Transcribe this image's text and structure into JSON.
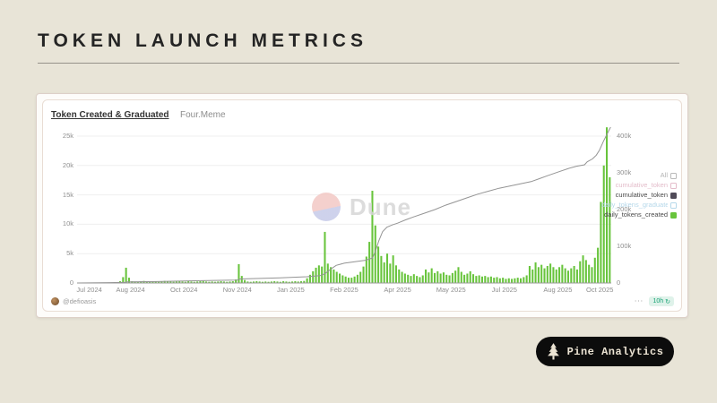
{
  "slide": {
    "title": "TOKEN LAUNCH METRICS"
  },
  "brand": {
    "label": "Pine Analytics",
    "icon": "pine-tree-icon"
  },
  "watermark": {
    "label": "Dune"
  },
  "card": {
    "title": "Token Created & Graduated",
    "subtitle": "Four.Meme",
    "attribution": "@defioasis",
    "menu_ellipsis": "⋯",
    "refresh_badge": {
      "label": "10h",
      "icon_glyph": "↻"
    }
  },
  "legend": [
    {
      "label": "All",
      "text_color": "#b3b3b3",
      "box_color": "#b9b9b9",
      "filled": false
    },
    {
      "label": "cumulative_token",
      "text_color": "#e3bcca",
      "box_color": "#e3bcca",
      "filled": false
    },
    {
      "label": "cumulative_token",
      "text_color": "#4a4a4a",
      "box_color": "#504b58",
      "filled": true
    },
    {
      "label": "daily_tokens_graduated",
      "text_color": "#b5d8ea",
      "box_color": "#b5d8ea",
      "filled": false
    },
    {
      "label": "daily_tokens_created",
      "text_color": "#4a4a4a",
      "box_color": "#68c43c",
      "filled": true
    }
  ],
  "chart_data": {
    "type": "bar+line",
    "title": "Token Created & Graduated",
    "subtitle": "Four.Meme",
    "x_ticks": [
      "Jul 2024",
      "Aug 2024",
      "Oct 2024",
      "Nov 2024",
      "Jan 2025",
      "Feb 2025",
      "Apr 2025",
      "May 2025",
      "Jul 2025",
      "Aug 2025",
      "Oct 2025"
    ],
    "left_axis": {
      "tick_labels": [
        "25k",
        "20k",
        "15k",
        "10k",
        "5k",
        "0"
      ],
      "tick_values": [
        25,
        20,
        15,
        10,
        5,
        0
      ],
      "unit": "thousand tokens / day",
      "max": 26.5
    },
    "right_axis": {
      "tick_labels": [
        "400k",
        "300k",
        "200k",
        "100k",
        "0"
      ],
      "tick_values": [
        400,
        300,
        200,
        100,
        0
      ],
      "unit": "thousand tokens cumulative",
      "max": 430
    },
    "grid": true,
    "legend_position": "right",
    "series": [
      {
        "name": "daily_tokens_created",
        "type": "bar",
        "axis": "left",
        "color": "#68c43c",
        "values_k": [
          0.05,
          0.03,
          0.04,
          0.03,
          0.05,
          0.04,
          0.03,
          0.05,
          0.04,
          0.06,
          0.05,
          0.04,
          0.06,
          0.08,
          0.3,
          1.0,
          2.6,
          0.9,
          0.3,
          0.25,
          0.2,
          0.3,
          0.35,
          0.25,
          0.2,
          0.25,
          0.3,
          0.2,
          0.25,
          0.35,
          0.3,
          0.25,
          0.2,
          0.25,
          0.3,
          0.25,
          0.2,
          0.3,
          0.25,
          0.2,
          0.25,
          0.3,
          0.35,
          0.25,
          0.2,
          0.25,
          0.2,
          0.25,
          0.3,
          0.25,
          0.2,
          0.25,
          0.3,
          0.6,
          3.2,
          1.2,
          0.5,
          0.25,
          0.2,
          0.25,
          0.3,
          0.25,
          0.2,
          0.25,
          0.2,
          0.25,
          0.3,
          0.25,
          0.2,
          0.3,
          0.25,
          0.2,
          0.25,
          0.3,
          0.25,
          0.3,
          0.35,
          0.8,
          1.4,
          2.0,
          2.6,
          3.0,
          2.8,
          8.7,
          3.3,
          2.7,
          2.3,
          1.9,
          1.6,
          1.3,
          1.1,
          0.9,
          0.9,
          1.1,
          1.4,
          1.9,
          2.8,
          4.5,
          7.0,
          15.7,
          9.8,
          6.2,
          4.6,
          3.5,
          5.0,
          3.3,
          4.7,
          3.0,
          2.3,
          1.9,
          1.6,
          1.4,
          1.2,
          1.5,
          1.2,
          1.0,
          1.3,
          2.3,
          1.8,
          2.5,
          1.7,
          2.0,
          1.6,
          1.8,
          1.4,
          1.3,
          1.7,
          2.1,
          2.7,
          1.9,
          1.4,
          1.6,
          2.0,
          1.5,
          1.2,
          1.3,
          1.1,
          1.2,
          1.0,
          1.1,
          0.9,
          1.0,
          0.8,
          0.9,
          0.7,
          0.8,
          0.7,
          0.8,
          0.9,
          0.8,
          1.0,
          1.3,
          2.9,
          2.3,
          3.5,
          2.7,
          3.1,
          2.5,
          2.9,
          3.3,
          2.7,
          2.3,
          2.7,
          3.1,
          2.5,
          2.1,
          2.5,
          2.9,
          2.3,
          3.7,
          4.7,
          3.9,
          3.1,
          2.7,
          4.3,
          6.0,
          13.8,
          20.0,
          26.5,
          18.0
        ]
      },
      {
        "name": "cumulative_token",
        "type": "line",
        "axis": "right",
        "color": "#949494",
        "points_fk": [
          [
            0,
            0
          ],
          [
            0.06,
            1
          ],
          [
            0.09,
            2
          ],
          [
            0.095,
            3
          ],
          [
            0.15,
            4
          ],
          [
            0.22,
            6
          ],
          [
            0.3,
            8
          ],
          [
            0.305,
            11
          ],
          [
            0.38,
            14
          ],
          [
            0.43,
            17
          ],
          [
            0.455,
            20
          ],
          [
            0.465,
            26
          ],
          [
            0.475,
            38
          ],
          [
            0.485,
            48
          ],
          [
            0.5,
            54
          ],
          [
            0.52,
            58
          ],
          [
            0.54,
            62
          ],
          [
            0.553,
            68
          ],
          [
            0.558,
            85
          ],
          [
            0.565,
            115
          ],
          [
            0.572,
            140
          ],
          [
            0.58,
            152
          ],
          [
            0.59,
            158
          ],
          [
            0.6,
            163
          ],
          [
            0.615,
            172
          ],
          [
            0.63,
            180
          ],
          [
            0.65,
            190
          ],
          [
            0.67,
            200
          ],
          [
            0.69,
            212
          ],
          [
            0.71,
            222
          ],
          [
            0.73,
            232
          ],
          [
            0.75,
            242
          ],
          [
            0.77,
            250
          ],
          [
            0.79,
            258
          ],
          [
            0.81,
            264
          ],
          [
            0.83,
            270
          ],
          [
            0.85,
            276
          ],
          [
            0.865,
            284
          ],
          [
            0.88,
            292
          ],
          [
            0.9,
            302
          ],
          [
            0.92,
            312
          ],
          [
            0.935,
            318
          ],
          [
            0.95,
            322
          ],
          [
            0.955,
            330
          ],
          [
            0.965,
            338
          ],
          [
            0.972,
            348
          ],
          [
            0.978,
            362
          ],
          [
            0.985,
            385
          ],
          [
            0.992,
            405
          ],
          [
            1.0,
            428
          ]
        ]
      }
    ]
  }
}
